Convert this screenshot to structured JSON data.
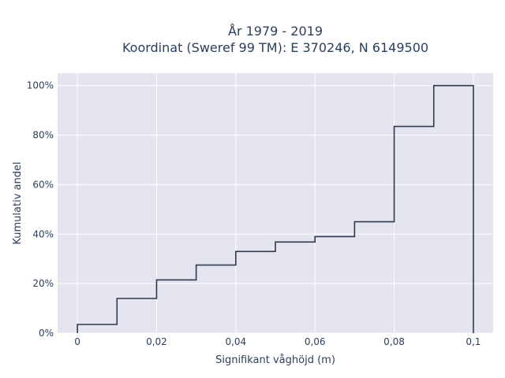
{
  "chart_data": {
    "type": "line",
    "line_shape": "step",
    "title": "År 1979 - 2019",
    "subtitle": "Koordinat (Sweref 99 TM): E 370246, N 6149500",
    "xlabel": "Signifikant våghöjd (m)",
    "ylabel": "Kumulativ andel",
    "xlim": [
      -0.005,
      0.105
    ],
    "ylim": [
      0,
      1.05
    ],
    "x_ticks": [
      0,
      0.02,
      0.04,
      0.06,
      0.08,
      0.1
    ],
    "x_tick_labels": [
      "0",
      "0,02",
      "0,04",
      "0,06",
      "0,08",
      "0,1"
    ],
    "y_ticks": [
      0,
      0.2,
      0.4,
      0.6,
      0.8,
      1.0
    ],
    "y_tick_labels": [
      "0%",
      "20%",
      "40%",
      "60%",
      "80%",
      "100%"
    ],
    "grid": true,
    "plot_background": "#e5e5f0",
    "line_color": "#2f3a4a",
    "x": [
      0,
      0.01,
      0.02,
      0.03,
      0.04,
      0.05,
      0.06,
      0.07,
      0.08,
      0.09,
      0.1
    ],
    "y": [
      0.035,
      0.14,
      0.215,
      0.275,
      0.33,
      0.368,
      0.39,
      0.45,
      0.835,
      1.0,
      0
    ]
  }
}
